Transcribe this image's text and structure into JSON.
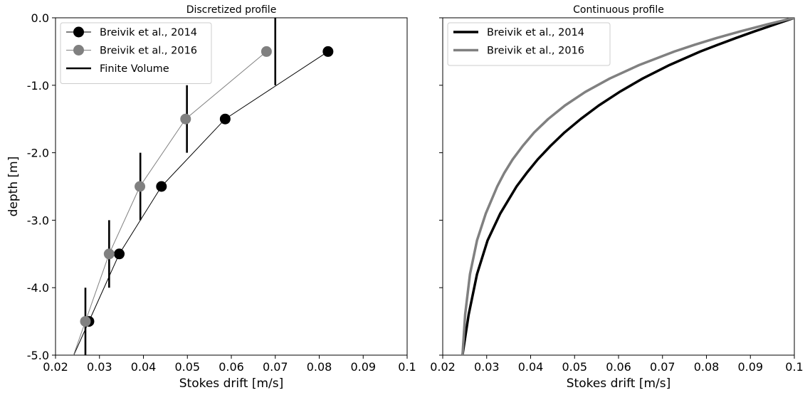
{
  "chart_data": [
    {
      "type": "line",
      "title": "Discretized profile",
      "xlabel": "Stokes drift [m/s]",
      "ylabel": "depth [m]",
      "xlim": [
        0.02,
        0.1
      ],
      "ylim": [
        -5.0,
        0.0
      ],
      "xticks": [
        "0.02",
        "0.03",
        "0.04",
        "0.05",
        "0.06",
        "0.07",
        "0.08",
        "0.09",
        "0.1"
      ],
      "yticks": [
        "-5.0",
        "-4.0",
        "-3.0",
        "-2.0",
        "-1.0",
        "0.0"
      ],
      "grid": false,
      "legend": "top-left",
      "series": [
        {
          "name": "Breivik et al., 2014",
          "color": "#000000",
          "marker": "circle",
          "x": [
            0.082,
            0.0586,
            0.0441,
            0.0345,
            0.0276
          ],
          "y": [
            -0.5,
            -1.5,
            -2.5,
            -3.5,
            -4.5
          ]
        },
        {
          "name": "Breivik et al., 2016",
          "color": "#808080",
          "marker": "circle",
          "x": [
            0.068,
            0.0496,
            0.0392,
            0.0322,
            0.0268
          ],
          "y": [
            -0.5,
            -1.5,
            -2.5,
            -3.5,
            -4.5
          ]
        },
        {
          "name": "Finite Volume",
          "color": "#000000",
          "style": "vertical-bars",
          "x": [
            0.07,
            0.0499,
            0.0393,
            0.0322,
            0.0268
          ],
          "y_from": [
            0.0,
            -1.0,
            -2.0,
            -3.0,
            -4.0
          ],
          "y_to": [
            -1.0,
            -2.0,
            -3.0,
            -4.0,
            -5.0
          ]
        }
      ]
    },
    {
      "type": "line",
      "title": "Continuous profile",
      "xlabel": "Stokes drift [m/s]",
      "ylabel": "",
      "xlim": [
        0.02,
        0.1
      ],
      "ylim": [
        -5.0,
        0.0
      ],
      "xticks": [
        "0.02",
        "0.03",
        "0.04",
        "0.05",
        "0.06",
        "0.07",
        "0.08",
        "0.09",
        "0.1"
      ],
      "yticks": [],
      "grid": false,
      "legend": "top-left",
      "series": [
        {
          "name": "Breivik et al., 2014",
          "color": "#000000",
          "x": [
            0.1,
            0.0955,
            0.091,
            0.0867,
            0.0826,
            0.0786,
            0.0716,
            0.0655,
            0.0602,
            0.0555,
            0.0514,
            0.0477,
            0.0445,
            0.0416,
            0.0391,
            0.0368,
            0.0331,
            0.0302,
            0.0278,
            0.0259,
            0.0245
          ],
          "y": [
            0.0,
            -0.1,
            -0.2,
            -0.3,
            -0.4,
            -0.5,
            -0.7,
            -0.9,
            -1.1,
            -1.3,
            -1.5,
            -1.7,
            -1.9,
            -2.1,
            -2.3,
            -2.5,
            -2.9,
            -3.3,
            -3.8,
            -4.4,
            -5.0
          ]
        },
        {
          "name": "Breivik et al., 2016",
          "color": "#808080",
          "x": [
            0.1,
            0.0937,
            0.0878,
            0.0823,
            0.0773,
            0.0727,
            0.0647,
            0.058,
            0.0524,
            0.0478,
            0.044,
            0.0408,
            0.0382,
            0.0359,
            0.034,
            0.0324,
            0.0298,
            0.0278,
            0.0262,
            0.0251,
            0.0245
          ],
          "y": [
            0.0,
            -0.1,
            -0.2,
            -0.3,
            -0.4,
            -0.5,
            -0.7,
            -0.9,
            -1.1,
            -1.3,
            -1.5,
            -1.7,
            -1.9,
            -2.1,
            -2.3,
            -2.5,
            -2.9,
            -3.3,
            -3.8,
            -4.4,
            -5.0
          ]
        }
      ]
    }
  ]
}
